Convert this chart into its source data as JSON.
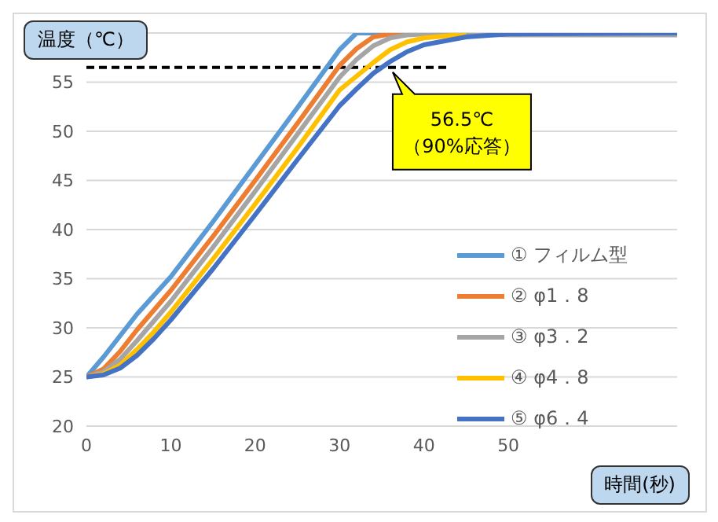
{
  "chart_data": {
    "type": "line",
    "xlabel": "時間(秒)",
    "ylabel": "温度（℃）",
    "x": [
      0,
      2,
      4,
      6,
      8,
      10,
      15,
      20,
      25,
      30,
      32,
      34,
      36,
      38,
      40,
      45,
      50,
      70
    ],
    "xlim": [
      0,
      70
    ],
    "xticks": [
      0,
      10,
      20,
      30,
      40,
      50
    ],
    "ylim": [
      20,
      60
    ],
    "yticks": [
      20,
      25,
      30,
      35,
      40,
      45,
      50,
      55,
      {
        "value": 60,
        "label": null
      }
    ],
    "grid": "y",
    "legend": "right",
    "marker": "none",
    "line_style": "solid",
    "series": [
      {
        "name": "① フィルム型",
        "color": "#5b9bd5",
        "values": [
          25,
          27,
          29.2,
          31.4,
          33.3,
          35.2,
          40.8,
          46.6,
          52.4,
          58.3,
          60,
          60,
          60,
          60,
          60,
          60,
          60,
          60
        ]
      },
      {
        "name": "② φ1．8",
        "color": "#ed7d31",
        "values": [
          25,
          25.8,
          27.6,
          29.8,
          31.8,
          33.8,
          39.3,
          45,
          50.8,
          56.7,
          58.4,
          59.6,
          59.9,
          60,
          60,
          null,
          null,
          null
        ]
      },
      {
        "name": "③ φ3．2",
        "color": "#a5a5a5",
        "values": [
          25,
          25.5,
          26.8,
          28.7,
          30.7,
          32.7,
          38.2,
          43.9,
          49.7,
          55.5,
          57.3,
          58.7,
          59.5,
          59.8,
          59.9,
          59.9,
          59.8,
          59.8
        ]
      },
      {
        "name": "④ φ4．8",
        "color": "#ffc000",
        "values": [
          25,
          25.3,
          26.2,
          27.8,
          29.6,
          31.6,
          37,
          42.6,
          48.3,
          54.2,
          55.6,
          57,
          58.3,
          59.1,
          59.5,
          59.9,
          null,
          null
        ]
      },
      {
        "name": "⑤ φ6．4",
        "color": "#4472c4",
        "values": [
          25,
          25.2,
          25.9,
          27.2,
          28.9,
          30.8,
          36,
          41.5,
          47.1,
          52.6,
          54.3,
          55.9,
          57.1,
          58.1,
          58.8,
          59.6,
          59.9,
          60
        ]
      }
    ],
    "ref_lines": [
      {
        "axis": "y",
        "value": 56.5,
        "color": "#000000",
        "line_style": "dashed"
      }
    ],
    "annotations": [
      {
        "text": "56.5℃\n（90%応答）",
        "x": 43,
        "y": 56.5
      }
    ]
  }
}
